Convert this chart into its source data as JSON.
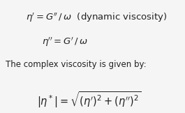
{
  "background_color": "#f5f5f5",
  "line1_math": "$\\eta' = G'' \\, / \\, \\omega$",
  "line1_text": "  (dynamic viscosity)",
  "line2": "$\\eta'' = G' \\, / \\, \\omega$",
  "line3": "The complex viscosity is given by:",
  "line4": "$|\\eta^*| = \\sqrt{(\\eta ')^2 + (\\eta '')^2}$",
  "text_color": "#222222",
  "fontsize_eq": 9.5,
  "fontsize_text": 8.5,
  "fontsize_big": 10.5
}
